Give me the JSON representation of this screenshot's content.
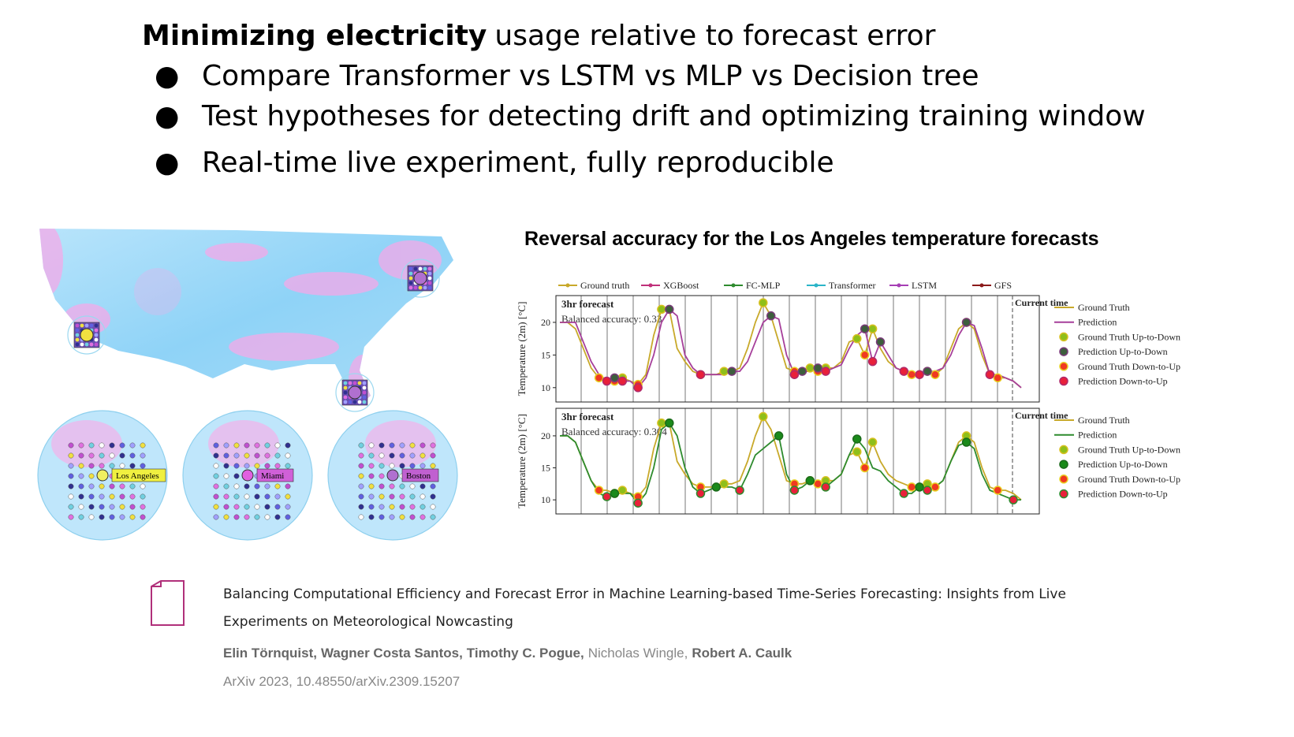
{
  "slide": {
    "title_bold": "Minimizing electricity",
    "title_rest": "usage relative to forecast error",
    "bullets": [
      "Compare Transformer vs LSTM vs MLP vs Decision tree",
      "Test hypotheses for detecting drift and optimizing training window",
      "Real-time live experiment, fully reproducible"
    ]
  },
  "map": {
    "cities": [
      "Los Angeles",
      "Miami",
      "Boston"
    ]
  },
  "chart_data": {
    "type": "line",
    "title": "Reversal accuracy for the Los Angeles temperature forecasts",
    "models": [
      {
        "name": "Ground truth",
        "color": "#c8a92a"
      },
      {
        "name": "XGBoost",
        "color": "#c0307a"
      },
      {
        "name": "FC-MLP",
        "color": "#2e8b2e"
      },
      {
        "name": "Transformer",
        "color": "#2bb5c8"
      },
      {
        "name": "LSTM",
        "color": "#a63fb5"
      },
      {
        "name": "GFS",
        "color": "#8b1a1a"
      }
    ],
    "panels": [
      {
        "label": "3hr forecast",
        "accuracy": "Balanced accuracy: 0.33",
        "current": "Current time",
        "ylabel": "Temperature (2m) [°C]",
        "ylim": [
          7.8,
          24.1
        ],
        "yticks": [
          10,
          15,
          20
        ],
        "legend": [
          {
            "name": "Ground Truth",
            "color": "#c8a92a"
          },
          {
            "name": "Prediction",
            "color": "#a63f9a"
          },
          {
            "name": "Ground Truth Up-to-Down",
            "color": "#8fbf1a",
            "edge": "#d8c020"
          },
          {
            "name": "Prediction Up-to-Down",
            "color": "#3d5e3d",
            "edge": "#7a3a7a"
          },
          {
            "name": "Ground Truth Down-to-Up",
            "color": "#f03a20",
            "edge": "#e8d020"
          },
          {
            "name": "Prediction Down-to-Up",
            "color": "#e8203a",
            "edge": "#b02a6a"
          }
        ],
        "series": [
          {
            "name": "Ground Truth",
            "color": "#c8a92a",
            "values": [
              20,
              20,
              19,
              16,
              13,
              11.5,
              11.5,
              11,
              11.5,
              11,
              10.5,
              12,
              18,
              22,
              22,
              16,
              14,
              12.5,
              12,
              12,
              12,
              12.5,
              12.5,
              13,
              16,
              20,
              23,
              21,
              17,
              13,
              12.5,
              12.5,
              13,
              12.5,
              13,
              13,
              14,
              17,
              17.5,
              15,
              19,
              16,
              14,
              13,
              12.5,
              12,
              12,
              12.5,
              12,
              13,
              16,
              19,
              20,
              19,
              15,
              12,
              11.5,
              11.5,
              11,
              10
            ]
          },
          {
            "name": "Prediction",
            "color": "#a63f9a",
            "values": [
              20,
              20,
              20,
              17,
              14,
              12,
              11,
              11.5,
              11,
              11,
              10,
              11.5,
              15,
              20,
              22,
              21,
              15,
              13,
              12,
              12,
              12,
              12,
              12.5,
              12.5,
              14,
              17,
              20,
              21,
              20.5,
              15,
              12,
              12.5,
              12.5,
              13,
              12.5,
              13,
              13.5,
              16,
              18,
              19,
              14,
              17,
              15,
              13,
              12.5,
              12.5,
              12,
              12.5,
              12.5,
              13,
              15,
              18,
              20,
              19.5,
              16,
              12,
              12,
              11.5,
              11,
              10
            ]
          }
        ]
      },
      {
        "label": "3hr forecast",
        "accuracy": "Balanced accuracy: 0.304",
        "current": "Current time",
        "ylabel": "Temperature (2m) [°C]",
        "ylim": [
          7.8,
          24.3
        ],
        "yticks": [
          10,
          15,
          20
        ],
        "legend": [
          {
            "name": "Ground Truth",
            "color": "#c8a92a"
          },
          {
            "name": "Prediction",
            "color": "#2e8b2e"
          },
          {
            "name": "Ground Truth Up-to-Down",
            "color": "#8fbf1a",
            "edge": "#d8c020"
          },
          {
            "name": "Prediction Up-to-Down",
            "color": "#1a8a1a",
            "edge": "#1a6a1a"
          },
          {
            "name": "Ground Truth Down-to-Up",
            "color": "#f03a20",
            "edge": "#e8d020"
          },
          {
            "name": "Prediction Down-to-Up",
            "color": "#e8203a",
            "edge": "#2e8b2e"
          }
        ],
        "series": [
          {
            "name": "Ground Truth",
            "color": "#c8a92a",
            "values": [
              20,
              20,
              19,
              16,
              13,
              11.5,
              11.5,
              11,
              11.5,
              11,
              10.5,
              12,
              18,
              22,
              22,
              16,
              14,
              12.5,
              12,
              12,
              12,
              12.5,
              12.5,
              13,
              16,
              20,
              23,
              21,
              17,
              13,
              12.5,
              12.5,
              13,
              12.5,
              13,
              13,
              14,
              17,
              17.5,
              15,
              19,
              16,
              14,
              13,
              12.5,
              12,
              12,
              12.5,
              12,
              13,
              16,
              19,
              20,
              19,
              15,
              12,
              11.5,
              11.5,
              11,
              10
            ]
          },
          {
            "name": "Prediction",
            "color": "#2e8b2e",
            "values": [
              20,
              20,
              19,
              16,
              13,
              11,
              10.5,
              11,
              11,
              11,
              9.5,
              11,
              15,
              21,
              22,
              20,
              15,
              12,
              11,
              11.5,
              12,
              12,
              12,
              11.5,
              14,
              17,
              18,
              19,
              20,
              14,
              11.5,
              12,
              13,
              12.5,
              12,
              13,
              14,
              17,
              19.5,
              18,
              15,
              14.5,
              13,
              12,
              11,
              11,
              12,
              11.5,
              12,
              13,
              16,
              18.5,
              19,
              18,
              14,
              11.5,
              11,
              10.5,
              10,
              10
            ]
          }
        ]
      }
    ]
  },
  "citation": {
    "title_line1": "Balancing Computational Efficiency and Forecast Error in Machine Learning-based Time-Series Forecasting: Insights from Live",
    "title_line2": "Experiments on Meteorological Nowcasting",
    "authors": [
      {
        "name": "Elin Törnquist,",
        "bold": true
      },
      {
        "name": "Wagner Costa Santos,",
        "bold": true
      },
      {
        "name": "Timothy C. Pogue,",
        "bold": true
      },
      {
        "name": "Nicholas Wingle,",
        "bold": false
      },
      {
        "name": "Robert A. Caulk",
        "bold": true
      }
    ],
    "venue": "ArXiv 2023, 10.48550/arXiv.2309.15207"
  }
}
